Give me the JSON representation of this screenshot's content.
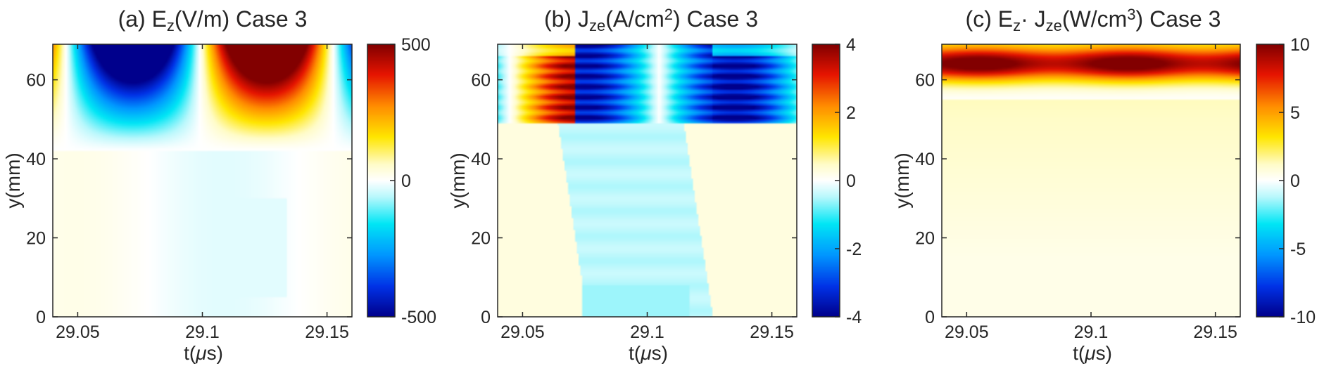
{
  "chart_data": [
    {
      "type": "heatmap",
      "title_parts": [
        "(a) E",
        "z",
        "(V/m) Case 3"
      ],
      "xlabel_parts": [
        "t(",
        "μ",
        "s)"
      ],
      "ylabel": "y(mm)",
      "xlim": [
        29.04,
        29.16
      ],
      "ylim": [
        0,
        69
      ],
      "xticks": [
        29.05,
        29.1,
        29.15
      ],
      "xtick_labels": [
        "29.05",
        "29.1",
        "29.15"
      ],
      "yticks": [
        0,
        20,
        40,
        60
      ],
      "ytick_labels": [
        "0",
        "20",
        "40",
        "60"
      ],
      "clim": [
        -500,
        500
      ],
      "colorbar_ticks": [
        -500,
        0,
        500
      ],
      "colorbar_labels": [
        "-500",
        "0",
        "500"
      ],
      "field": "Ez"
    },
    {
      "type": "heatmap",
      "title_parts": [
        "(b) J",
        "ze",
        "(A/cm",
        "2",
        ") Case 3"
      ],
      "xlabel_parts": [
        "t(",
        "μ",
        "s)"
      ],
      "ylabel": "y(mm)",
      "xlim": [
        29.04,
        29.16
      ],
      "ylim": [
        0,
        69
      ],
      "xticks": [
        29.05,
        29.1,
        29.15
      ],
      "xtick_labels": [
        "29.05",
        "29.1",
        "29.15"
      ],
      "yticks": [
        0,
        20,
        40,
        60
      ],
      "ytick_labels": [
        "0",
        "20",
        "40",
        "60"
      ],
      "clim": [
        -4,
        4
      ],
      "colorbar_ticks": [
        -4,
        -2,
        0,
        2,
        4
      ],
      "colorbar_labels": [
        "-4",
        "-2",
        "0",
        "2",
        "4"
      ],
      "field": "Jze"
    },
    {
      "type": "heatmap",
      "title_parts": [
        "(c) E",
        "z",
        "· J",
        "ze",
        "(W/cm",
        "3",
        ") Case 3"
      ],
      "xlabel_parts": [
        "t(",
        "μ",
        "s)"
      ],
      "ylabel": "y(mm)",
      "xlim": [
        29.04,
        29.16
      ],
      "ylim": [
        0,
        69
      ],
      "xticks": [
        29.05,
        29.1,
        29.15
      ],
      "xtick_labels": [
        "29.05",
        "29.1",
        "29.15"
      ],
      "yticks": [
        0,
        20,
        40,
        60
      ],
      "ytick_labels": [
        "0",
        "20",
        "40",
        "60"
      ],
      "clim": [
        -10,
        10
      ],
      "colorbar_ticks": [
        -10,
        -5,
        0,
        5,
        10
      ],
      "colorbar_labels": [
        "-10",
        "-5",
        "0",
        "5",
        "10"
      ],
      "field": "EzJze"
    }
  ]
}
